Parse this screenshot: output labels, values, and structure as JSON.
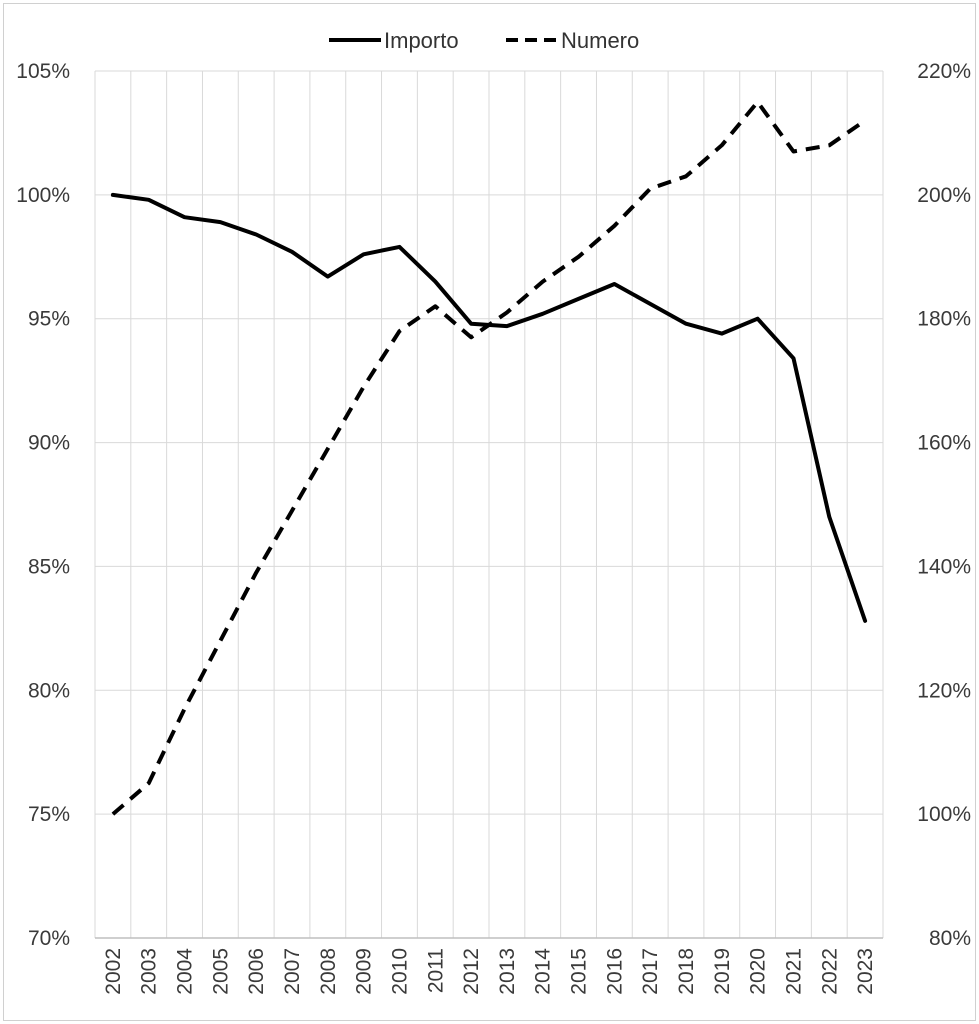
{
  "chart_data": {
    "type": "line",
    "title": "",
    "xlabel": "",
    "ylabel": "",
    "x": [
      "2002",
      "2003",
      "2004",
      "2005",
      "2006",
      "2007",
      "2008",
      "2009",
      "2010",
      "2011",
      "2012",
      "2013",
      "2014",
      "2015",
      "2016",
      "2017",
      "2018",
      "2019",
      "2020",
      "2021",
      "2022",
      "2023"
    ],
    "legend": {
      "placement": "top-center"
    },
    "grid": true,
    "y_left": {
      "range": [
        70,
        105
      ],
      "ticks": [
        "70%",
        "75%",
        "80%",
        "85%",
        "90%",
        "95%",
        "100%",
        "105%"
      ]
    },
    "y_right": {
      "range": [
        80,
        220
      ],
      "ticks": [
        "80%",
        "100%",
        "120%",
        "140%",
        "160%",
        "180%",
        "200%",
        "220%"
      ]
    },
    "series": [
      {
        "name": "Importo",
        "axis": "left",
        "style": "solid",
        "values": [
          100.0,
          99.8,
          99.1,
          98.9,
          98.4,
          97.7,
          96.7,
          97.6,
          97.9,
          96.5,
          94.8,
          94.7,
          95.2,
          95.8,
          96.4,
          95.6,
          94.8,
          94.4,
          95.0,
          93.4,
          87.0,
          82.8
        ]
      },
      {
        "name": "Numero",
        "axis": "right",
        "style": "dashed",
        "values": [
          100,
          105,
          117,
          128,
          139,
          149,
          159,
          169,
          178,
          182,
          177,
          181,
          186,
          190,
          195,
          201,
          203,
          208,
          215,
          207,
          208,
          212
        ]
      }
    ],
    "colors": {
      "line": "#000000",
      "grid": "#d9d9d9",
      "axis": "#bfbfbf",
      "frame": "#d0d0d0"
    }
  }
}
